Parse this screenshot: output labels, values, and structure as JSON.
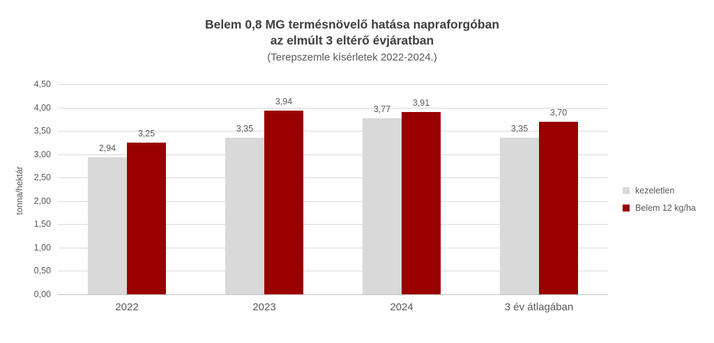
{
  "title": {
    "line1": "Belem 0,8 MG termésnövelő hatása napraforgóban",
    "line2": "az elmúlt 3 eltérő évjáratban",
    "subtitle": "(Terepszemle kísérletek 2022-2024.)"
  },
  "colors": {
    "kezeletlen": "#d9d9d9",
    "belem": "#990000",
    "gridline": "#d9d9d9",
    "axis_line": "#bfbfbf",
    "title_text": "#404040",
    "label_text": "#595959"
  },
  "chart_data": {
    "type": "bar",
    "title": "Belem 0,8 MG termésnövelő hatása napraforgóban az elmúlt 3 eltérő évjáratban",
    "subtitle": "(Terepszemle kísérletek 2022-2024.)",
    "categories": [
      "2022",
      "2023",
      "2024",
      "3 év átlagában"
    ],
    "series": [
      {
        "name": "kezeletlen",
        "color": "#d9d9d9",
        "values": [
          2.94,
          3.35,
          3.77,
          3.35
        ],
        "labels": [
          "2,94",
          "3,35",
          "3,77",
          "3,35"
        ]
      },
      {
        "name": "Belem 12 kg/ha",
        "color": "#990000",
        "values": [
          3.25,
          3.94,
          3.91,
          3.7
        ],
        "labels": [
          "3,25",
          "3,94",
          "3,91",
          "3,70"
        ]
      }
    ],
    "xlabel": "",
    "ylabel": "tonna/hektár",
    "ylim": [
      0,
      4.5
    ],
    "ytick_step": 0.5,
    "ytick_labels": [
      "0,00",
      "0,50",
      "1,00",
      "1,50",
      "2,00",
      "2,50",
      "3,00",
      "3,50",
      "4,00",
      "4,50"
    ],
    "grid": true,
    "legend_position": "right"
  }
}
